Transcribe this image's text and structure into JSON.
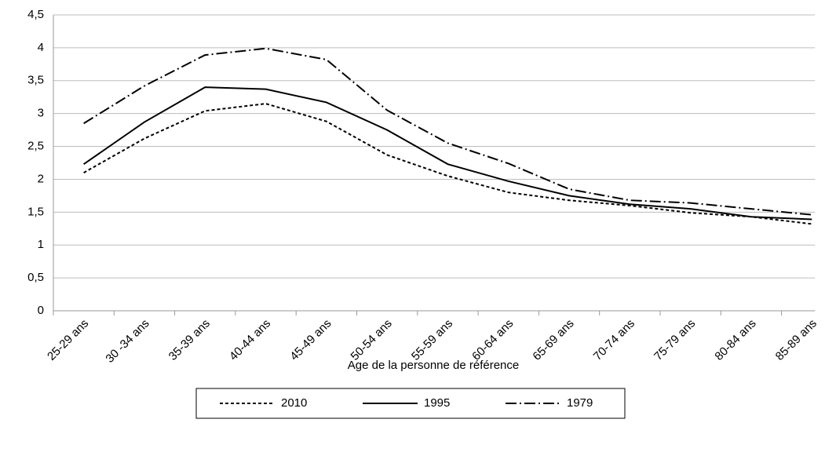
{
  "chart_data": {
    "type": "line",
    "x_label": "Age de la personne de référence",
    "categories": [
      "25-29 ans",
      "30 -34 ans",
      "35-39 ans",
      "40-44 ans",
      "45-49 ans",
      "50-54 ans",
      "55-59 ans",
      "60-64 ans",
      "65-69 ans",
      "70-74 ans",
      "75-79 ans",
      "80-84 ans",
      "85-89 ans"
    ],
    "series": [
      {
        "name": "2010",
        "color": "#000000",
        "dash": "dashed",
        "values": [
          2.1,
          2.62,
          3.04,
          3.15,
          2.88,
          2.37,
          2.05,
          1.8,
          1.68,
          1.6,
          1.49,
          1.43,
          1.32
        ]
      },
      {
        "name": "1995",
        "color": "#000000",
        "dash": "solid",
        "values": [
          2.23,
          2.87,
          3.4,
          3.37,
          3.17,
          2.75,
          2.23,
          1.97,
          1.75,
          1.62,
          1.55,
          1.43,
          1.39
        ]
      },
      {
        "name": "1979",
        "color": "#000000",
        "dash": "dashdot",
        "values": [
          2.85,
          3.42,
          3.89,
          3.99,
          3.82,
          3.05,
          2.55,
          2.24,
          1.85,
          1.68,
          1.64,
          1.55,
          1.46
        ]
      }
    ],
    "ylim": [
      0,
      4.5
    ],
    "yticks": [
      0,
      {
        "value": 0.5,
        "label": "0,5"
      },
      1,
      {
        "value": 1.5,
        "label": "1,5"
      },
      2,
      {
        "value": 2.5,
        "label": "2,5"
      },
      3,
      {
        "value": 3.5,
        "label": "3,5"
      },
      4,
      {
        "value": 4.5,
        "label": "4,5"
      }
    ],
    "grid": true,
    "legend": "bottom"
  }
}
